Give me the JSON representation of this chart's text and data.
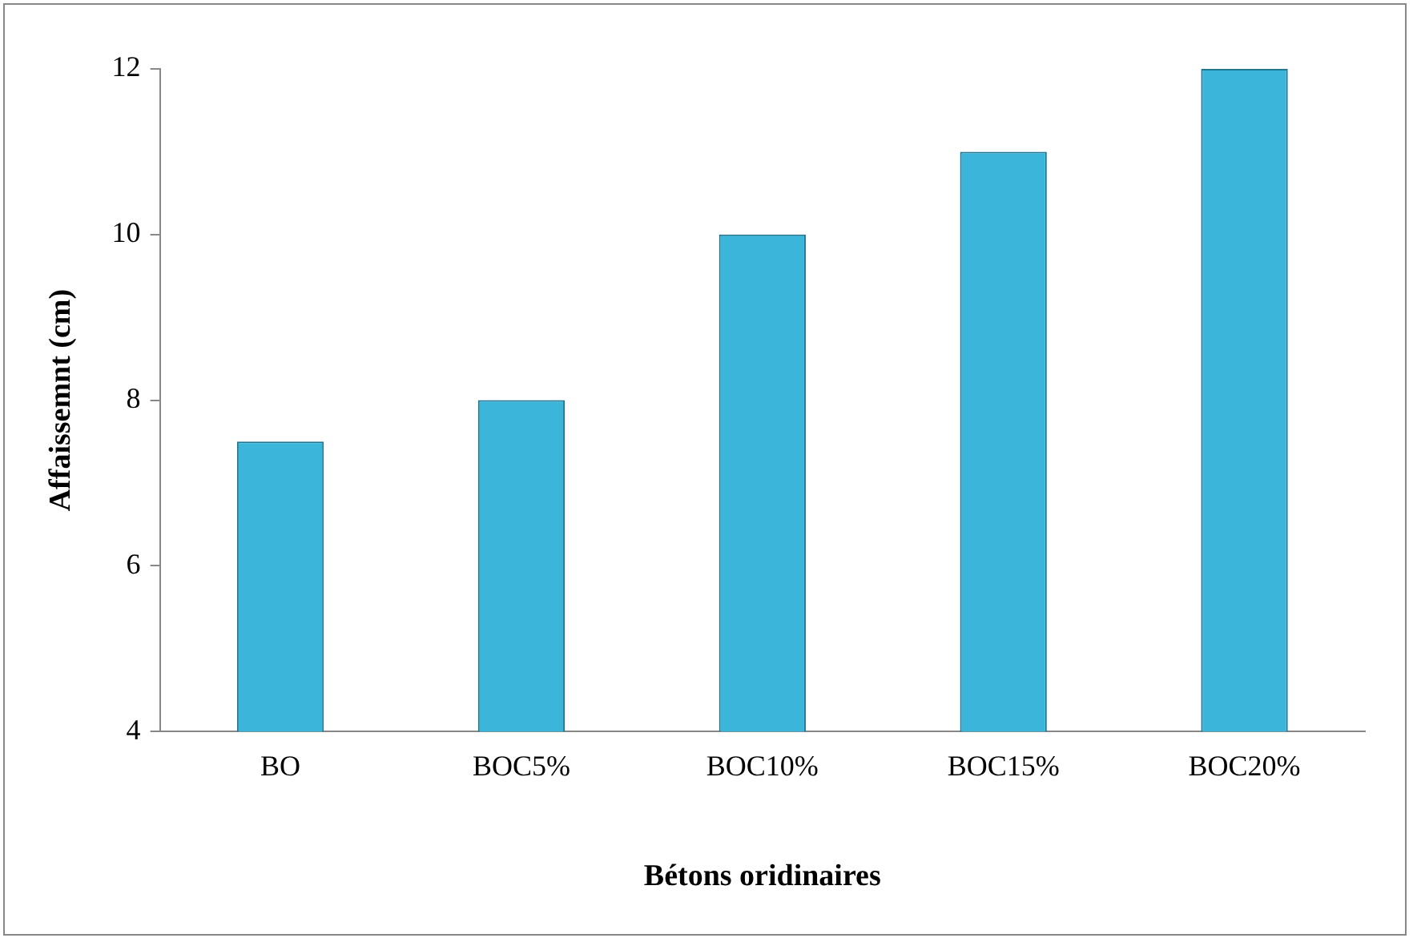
{
  "chart_data": {
    "type": "bar",
    "xlabel": "Bétons oridinaires",
    "ylabel": "Affaissemnt (cm)",
    "categories": [
      "BO",
      "BOC5%",
      "BOC10%",
      "BOC15%",
      "BOC20%"
    ],
    "values": [
      7.5,
      8,
      10,
      11,
      12
    ],
    "color": "#3bb6da",
    "ylim": [
      4,
      12
    ],
    "yticks": [
      4,
      6,
      8,
      10,
      12
    ],
    "grid": false,
    "legend": false
  }
}
